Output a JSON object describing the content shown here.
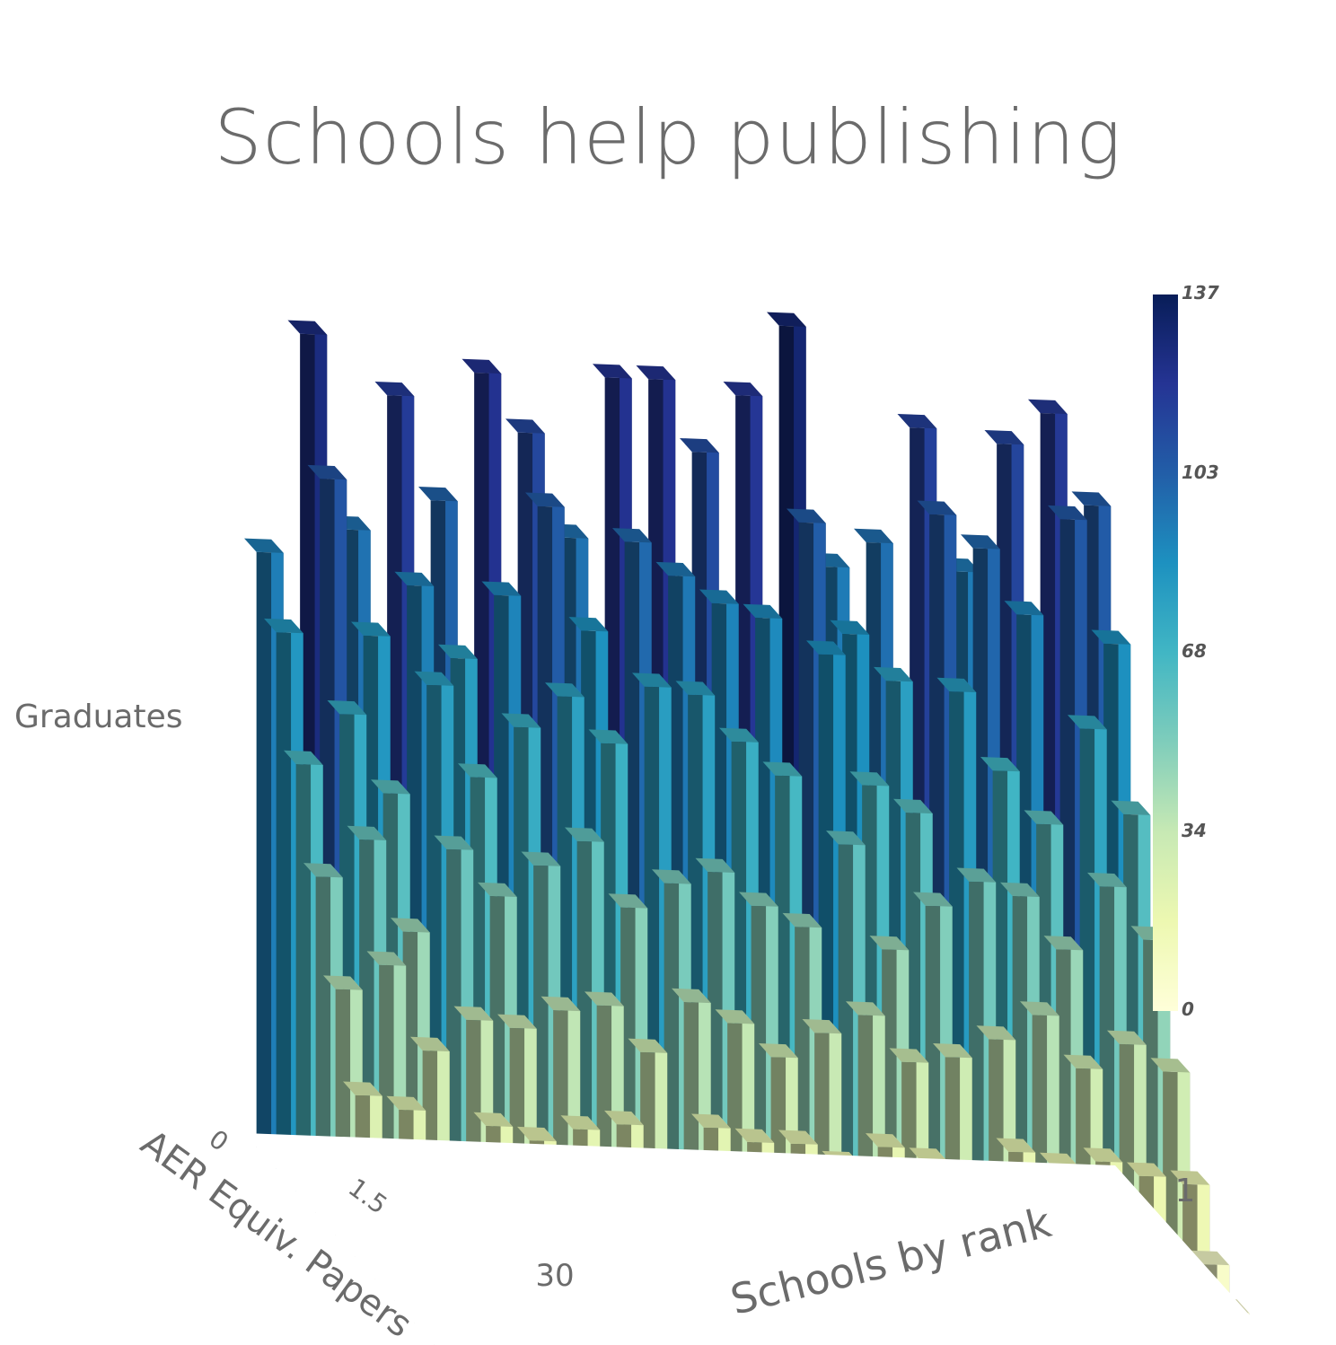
{
  "chart_data": {
    "type": "bar3d",
    "title": "Schools help publishing",
    "xlabel": "Schools by rank",
    "ylabel": "AER Equiv. Papers",
    "zlabel": "Graduates",
    "x_tick_labels": [
      "1"
    ],
    "y_tick_labels": [
      "0",
      "1.5",
      "30"
    ],
    "colorbar": {
      "ticks": [
        "0",
        "34",
        "68",
        "103",
        "137"
      ],
      "range": [
        0,
        137
      ],
      "colorscale": [
        "#ffffd9",
        "#edf8b1",
        "#c7e9b4",
        "#7fcdbb",
        "#41b6c4",
        "#1d91c0",
        "#225ea8",
        "#253494",
        "#081d58"
      ]
    },
    "rows": [
      {
        "y": "0",
        "values": [
          92,
          126,
          96,
          117,
          101,
          121,
          112,
          96,
          121,
          121,
          110,
          119,
          130,
          93,
          97,
          115,
          93,
          113,
          118,
          104
        ]
      },
      {
        "y": "1",
        "values": [
          83,
          107,
          83,
          91,
          80,
          90,
          104,
          85,
          99,
          94,
          90,
          88,
          103,
          86,
          79,
          105,
          100,
          90,
          105,
          86
        ]
      },
      {
        "y": "2",
        "values": [
          66,
          74,
          62,
          79,
          65,
          73,
          78,
          71,
          80,
          79,
          72,
          67,
          86,
          66,
          62,
          81,
          69,
          61,
          76,
          63
        ]
      },
      {
        "y": "3",
        "values": [
          52,
          58,
          44,
          57,
          50,
          55,
          59,
          49,
          53,
          55,
          50,
          47,
          60,
          44,
          51,
          55,
          53,
          45,
          55,
          47
        ]
      },
      {
        "y": "4",
        "values": [
          38,
          42,
          29,
          34,
          33,
          36,
          37,
          30,
          38,
          35,
          30,
          34,
          37,
          30,
          31,
          34,
          38,
          30,
          34,
          30
        ]
      },
      {
        "y": "5",
        "values": [
          25,
          23,
          14,
          21,
          19,
          21,
          22,
          16,
          22,
          20,
          20,
          17,
          20,
          18,
          16,
          20,
          18,
          19,
          17,
          16
        ]
      },
      {
        "y": "6",
        "values": [
          13,
          11,
          7,
          10,
          9,
          10,
          10,
          9,
          11,
          10,
          8,
          9,
          10,
          8,
          7,
          9,
          9,
          8,
          8,
          7
        ]
      },
      {
        "y": "7",
        "values": [
          6,
          5,
          3,
          4,
          4,
          4,
          5,
          3,
          5,
          4,
          3,
          4,
          4,
          3,
          3,
          4,
          4,
          3,
          3,
          3
        ]
      },
      {
        "y": "8",
        "values": [
          3,
          2,
          1,
          2,
          2,
          2,
          2,
          1,
          2,
          2,
          1,
          2,
          2,
          1,
          1,
          2,
          1,
          1,
          1,
          1
        ]
      },
      {
        "y": "9",
        "values": [
          2,
          1,
          1,
          1,
          1,
          1,
          1,
          1,
          1,
          1,
          1,
          1,
          1,
          1,
          1,
          1,
          1,
          1,
          1,
          1
        ]
      },
      {
        "y": "30",
        "values": [
          1,
          1,
          0,
          1,
          0,
          1,
          0,
          0,
          1,
          0,
          0,
          1,
          0,
          0,
          0,
          1,
          0,
          0,
          0,
          0
        ]
      }
    ]
  }
}
